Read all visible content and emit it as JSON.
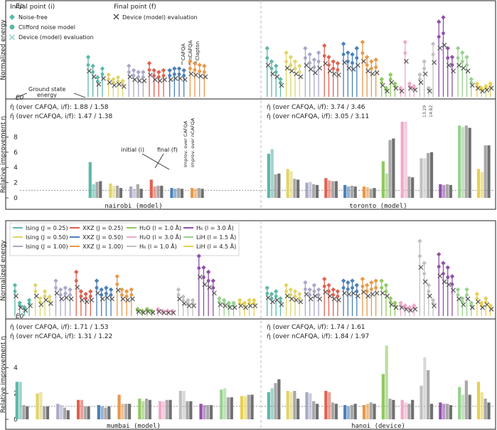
{
  "colors": {
    "Ising025": "#5cb8a8",
    "Ising050": "#e0d46a",
    "Ising100": "#a8a8c8",
    "XXZ025": "#e06050",
    "XXZ050": "#4a80b8",
    "XXZ100": "#e89848",
    "H2O10": "#90c860",
    "H2O30": "#f0a8c8",
    "H6_10": "#c0c0c0",
    "H6_30": "#9050a8",
    "LiH15": "#98d090",
    "LiH45": "#e8d050",
    "grey_light": "#a8a8a8",
    "grey_dark": "#707070",
    "marker": "#555555"
  },
  "labels": {
    "energy_ylabel": "Normalized energy",
    "eta_ylabel": "Relative improvement η",
    "E_rho": "Eρ",
    "E0": "E0",
    "ground_state": "Ground state",
    "energy_word": "energy"
  },
  "top_legend": {
    "initial_title": "Initial point (i)",
    "noise_free": "Noise-free",
    "clifford": "Clifford noise model",
    "device_eval": "Device (model) evaluation",
    "final_title": "Final point (f)",
    "final_device_eval": "Device (model) evaluation",
    "methods": [
      "CAFQA",
      "nCAFQA",
      "Clapton"
    ]
  },
  "annotations": {
    "initial": "initial (i)",
    "final": "final (f)",
    "improv_cafqa": "Improv. over CAFQA",
    "improv_ncafqa": "improv. over nCAFQA",
    "toronto_v1": "13.29",
    "toronto_v2": "14.82"
  },
  "bottom_legend": [
    {
      "key": "Ising025",
      "label": "Ising (J = 0.25)"
    },
    {
      "key": "XXZ025",
      "label": "XXZ (J = 0.25)"
    },
    {
      "key": "H2O10",
      "label": "H₂O (l = 1.0 Å)"
    },
    {
      "key": "H6_30",
      "label": "H₆ (l = 3.0 Å)"
    },
    {
      "key": "Ising050",
      "label": "Ising (J = 0.50)"
    },
    {
      "key": "XXZ050",
      "label": "XXZ (J = 0.50)"
    },
    {
      "key": "H2O30",
      "label": "H₂O (l = 3.0 Å)"
    },
    {
      "key": "LiH15",
      "label": "LiH (l = 1.5 Å)"
    },
    {
      "key": "Ising100",
      "label": "Ising (J = 1.00)"
    },
    {
      "key": "XXZ100",
      "label": "XXZ (J = 1.00)"
    },
    {
      "key": "H6_10",
      "label": "H₆ (l = 1.0 Å)"
    },
    {
      "key": "LiH45",
      "label": "LiH (l = 4.5 Å)"
    }
  ],
  "chart_data": [
    {
      "type": "bar",
      "panel": "top",
      "ylabel": "Relative improvement η",
      "ylim": [
        0,
        10
      ],
      "ticks": [
        0,
        2,
        4,
        6,
        8
      ],
      "reference_line": 1,
      "left": {
        "device": "nairobi (model)",
        "stat1": "η̄ (over CAFQA, i/f): 1.88 / 1.58",
        "stat2": "η̄ (over nCAFQA, i/f): 1.47 / 1.38",
        "groups": [
          {
            "key": "Ising025",
            "values": [
              4.7,
              1.8,
              2.1,
              2.2
            ]
          },
          {
            "key": "Ising050",
            "values": [
              1.9,
              1.6,
              1.6,
              1.3
            ]
          },
          {
            "key": "Ising100",
            "values": [
              1.5,
              1.2,
              1.8,
              1.2
            ]
          },
          {
            "key": "XXZ025",
            "values": [
              2.4,
              1.5,
              1.6,
              1.6
            ]
          },
          {
            "key": "XXZ050",
            "values": [
              1.3,
              1.2,
              1.3,
              1.2
            ]
          },
          {
            "key": "XXZ100",
            "values": [
              1.3,
              1.2,
              1.3,
              1.2
            ]
          }
        ]
      },
      "right": {
        "device": "toronto (model)",
        "stat1": "η̄ (over CAFQA, i/f): 3.74 / 3.46",
        "stat2": "η̄ (over nCAFQA, i/f): 3.05 / 3.11",
        "groups": [
          {
            "key": "Ising025",
            "values": [
              5.8,
              6.4,
              3.1,
              3.2
            ]
          },
          {
            "key": "Ising050",
            "values": [
              3.8,
              3.5,
              2.5,
              2.4
            ]
          },
          {
            "key": "Ising100",
            "values": [
              2.0,
              2.1,
              1.8,
              1.7
            ]
          },
          {
            "key": "XXZ025",
            "values": [
              2.6,
              2.3,
              2.2,
              2.2
            ]
          },
          {
            "key": "XXZ050",
            "values": [
              1.7,
              1.5,
              1.6,
              1.5
            ]
          },
          {
            "key": "XXZ100",
            "values": [
              1.5,
              1.4,
              1.2,
              1.3
            ]
          },
          {
            "key": "H2O10",
            "values": [
              4.8,
              3.2,
              7.6,
              7.8
            ]
          },
          {
            "key": "H2O30",
            "values": [
              10.0,
              10.0,
              2.8,
              2.7
            ]
          },
          {
            "key": "H6_10",
            "values": [
              5.2,
              5.2,
              5.9,
              6.0
            ]
          },
          {
            "key": "H6_30",
            "values": [
              1.8,
              1.7,
              1.8,
              1.7
            ]
          },
          {
            "key": "LiH15",
            "values": [
              9.5,
              9.3,
              9.5,
              9.2
            ]
          },
          {
            "key": "LiH45",
            "values": [
              3.8,
              3.4,
              6.9,
              6.9
            ]
          }
        ]
      }
    },
    {
      "type": "bar",
      "panel": "bottom",
      "ylabel": "Relative improvement η",
      "ylim": [
        0,
        6
      ],
      "ticks": [
        0,
        2,
        4
      ],
      "reference_line": 1,
      "left": {
        "device": "mumbai (model)",
        "stat1": "η̄ (over CAFQA, i/f): 1.71 / 1.53",
        "stat2": "η̄ (over nCAFQA, i/f): 1.31 / 1.22",
        "groups": [
          {
            "key": "Ising025",
            "values": [
              2.9,
              2.9,
              1.1,
              1.0
            ]
          },
          {
            "key": "Ising050",
            "values": [
              2.0,
              2.1,
              1.0,
              1.0
            ]
          },
          {
            "key": "Ising100",
            "values": [
              1.2,
              1.1,
              0.9,
              0.7
            ]
          },
          {
            "key": "XXZ025",
            "values": [
              1.5,
              1.5,
              1.0,
              1.0
            ]
          },
          {
            "key": "XXZ050",
            "values": [
              1.1,
              1.0,
              0.9,
              1.0
            ]
          },
          {
            "key": "XXZ100",
            "values": [
              1.9,
              1.2,
              1.2,
              1.2
            ]
          },
          {
            "key": "H2O10",
            "values": [
              1.6,
              1.4,
              1.6,
              1.5
            ]
          },
          {
            "key": "H2O30",
            "values": [
              1.4,
              1.4,
              1.5,
              1.5
            ]
          },
          {
            "key": "H6_10",
            "values": [
              2.2,
              2.2,
              1.4,
              1.4
            ]
          },
          {
            "key": "H6_30",
            "values": [
              1.2,
              1.1,
              1.1,
              1.1
            ]
          },
          {
            "key": "LiH15",
            "values": [
              2.3,
              2.4,
              1.7,
              1.7
            ]
          },
          {
            "key": "LiH45",
            "values": [
              1.8,
              1.8,
              1.9,
              1.9
            ]
          }
        ]
      },
      "right": {
        "device": "hanoi (device)",
        "stat1": "η̄ (over CAFQA, i/f): 1.74 / 1.61",
        "stat2": "η̄ (over nCAFQA, i/f): 1.84 / 1.97",
        "groups": [
          {
            "key": "Ising025",
            "values": [
              2.1,
              2.4,
              2.8,
              3.1
            ]
          },
          {
            "key": "Ising050",
            "values": [
              2.2,
              2.1,
              2.2,
              1.6
            ]
          },
          {
            "key": "Ising100",
            "values": [
              2.1,
              2.0,
              1.4,
              1.2
            ]
          },
          {
            "key": "XXZ025",
            "values": [
              2.2,
              2.1,
              1.3,
              1.2
            ]
          },
          {
            "key": "XXZ050",
            "values": [
              1.1,
              1.0,
              1.1,
              1.2
            ]
          },
          {
            "key": "XXZ100",
            "values": [
              1.1,
              1.2,
              1.3,
              1.2
            ]
          },
          {
            "key": "H2O10",
            "values": [
              3.5,
              5.7,
              1.6,
              1.5
            ]
          },
          {
            "key": "H2O30",
            "values": [
              1.5,
              1.3,
              1.2,
              1.5
            ]
          },
          {
            "key": "H6_10",
            "values": [
              2.6,
              4.8,
              3.8,
              1.2
            ]
          },
          {
            "key": "H6_30",
            "values": [
              1.3,
              1.2,
              1.2,
              1.1
            ]
          },
          {
            "key": "LiH15",
            "values": [
              2.5,
              1.9,
              3.0,
              1.9
            ]
          },
          {
            "key": "LiH45",
            "values": [
              2.9,
              2.1,
              1.6,
              1.3
            ]
          }
        ]
      }
    },
    {
      "type": "scatter",
      "panel": "energy",
      "ylabel": "Normalized energy",
      "ylim": [
        0,
        1
      ],
      "series": [
        {
          "name": "nairobi",
          "groups": [
            {
              "key": "Ising025",
              "v": [
                0.45,
                0.35,
                0.22,
                0.32
              ]
            },
            {
              "key": "Ising050",
              "v": [
                0.25,
                0.2,
                0.22,
                0.18
              ]
            },
            {
              "key": "Ising100",
              "v": [
                0.35,
                0.3,
                0.28,
                0.28
              ]
            },
            {
              "key": "XXZ025",
              "v": [
                0.38,
                0.3,
                0.28,
                0.3
              ]
            },
            {
              "key": "XXZ050",
              "v": [
                0.3,
                0.32,
                0.32,
                0.3
              ]
            },
            {
              "key": "XXZ100",
              "v": [
                0.4,
                0.38,
                0.36,
                0.35
              ]
            }
          ]
        },
        {
          "name": "toronto",
          "groups": [
            {
              "key": "Ising025",
              "v": [
                0.55,
                0.4,
                0.35,
                0.2
              ]
            },
            {
              "key": "Ising050",
              "v": [
                0.5,
                0.45,
                0.4,
                0.35
              ]
            },
            {
              "key": "Ising100",
              "v": [
                0.55,
                0.48,
                0.42,
                0.5
              ]
            },
            {
              "key": "XXZ025",
              "v": [
                0.58,
                0.45,
                0.4,
                0.38
              ]
            },
            {
              "key": "XXZ050",
              "v": [
                0.6,
                0.5,
                0.48,
                0.55
              ]
            },
            {
              "key": "XXZ100",
              "v": [
                0.62,
                0.45,
                0.4,
                0.42
              ]
            },
            {
              "key": "H2O10",
              "v": [
                0.2,
                0.1,
                0.25,
                0.15
              ]
            },
            {
              "key": "H2O30",
              "v": [
                0.1,
                0.62,
                0.15,
                0.12
              ]
            },
            {
              "key": "H6_10",
              "v": [
                0.25,
                0.4,
                0.1,
                0.6
              ]
            },
            {
              "key": "H6_30",
              "v": [
                0.85,
                0.9,
                0.55,
                0.45
              ]
            },
            {
              "key": "LiH15",
              "v": [
                0.55,
                0.5,
                0.45,
                0.2
              ]
            },
            {
              "key": "LiH45",
              "v": [
                0.15,
                0.1,
                0.12,
                0.15
              ]
            }
          ]
        },
        {
          "name": "mumbai",
          "groups": [
            {
              "key": "Ising025",
              "v": [
                0.35,
                0.15,
                0.1,
                0.18
              ]
            },
            {
              "key": "Ising050",
              "v": [
                0.35,
                0.2,
                0.28,
                0.22
              ]
            },
            {
              "key": "Ising100",
              "v": [
                0.4,
                0.3,
                0.32,
                0.3
              ]
            },
            {
              "key": "XXZ025",
              "v": [
                0.5,
                0.28,
                0.25,
                0.28
              ]
            },
            {
              "key": "XXZ050",
              "v": [
                0.4,
                0.3,
                0.32,
                0.3
              ]
            },
            {
              "key": "XXZ100",
              "v": [
                0.45,
                0.3,
                0.28,
                0.3
              ]
            },
            {
              "key": "H2O10",
              "v": [
                0.08,
                0.06,
                0.08,
                0.06
              ]
            },
            {
              "key": "H2O30",
              "v": [
                0.08,
                0.06,
                0.06,
                0.06
              ]
            },
            {
              "key": "H6_10",
              "v": [
                0.3,
                0.22,
                0.18,
                0.18
              ]
            },
            {
              "key": "H6_30",
              "v": [
                0.68,
                0.55,
                0.5,
                0.4
              ]
            },
            {
              "key": "LiH15",
              "v": [
                0.2,
                0.18,
                0.15,
                0.15
              ]
            },
            {
              "key": "LiH45",
              "v": [
                0.18,
                0.15,
                0.18,
                0.18
              ]
            }
          ]
        },
        {
          "name": "hanoi",
          "groups": [
            {
              "key": "Ising025",
              "v": [
                0.32,
                0.25,
                0.28,
                0.2
              ]
            },
            {
              "key": "Ising050",
              "v": [
                0.35,
                0.3,
                0.28,
                0.25
              ]
            },
            {
              "key": "Ising100",
              "v": [
                0.38,
                0.3,
                0.35,
                0.3
              ]
            },
            {
              "key": "XXZ025",
              "v": [
                0.42,
                0.35,
                0.3,
                0.28
              ]
            },
            {
              "key": "XXZ050",
              "v": [
                0.4,
                0.38,
                0.4,
                0.35
              ]
            },
            {
              "key": "XXZ100",
              "v": [
                0.42,
                0.35,
                0.38,
                0.4
              ]
            },
            {
              "key": "H2O10",
              "v": [
                0.4,
                0.35,
                0.2,
                0.15
              ]
            },
            {
              "key": "H2O30",
              "v": [
                0.15,
                0.12,
                0.1,
                0.12
              ]
            },
            {
              "key": "H6_10",
              "v": [
                0.85,
                0.6,
                0.35,
                0.18
              ]
            },
            {
              "key": "H6_30",
              "v": [
                0.7,
                0.6,
                0.55,
                0.45
              ]
            },
            {
              "key": "LiH15",
              "v": [
                0.3,
                0.2,
                0.3,
                0.15
              ]
            },
            {
              "key": "LiH45",
              "v": [
                0.25,
                0.15,
                0.2,
                0.12
              ]
            }
          ]
        }
      ]
    }
  ]
}
